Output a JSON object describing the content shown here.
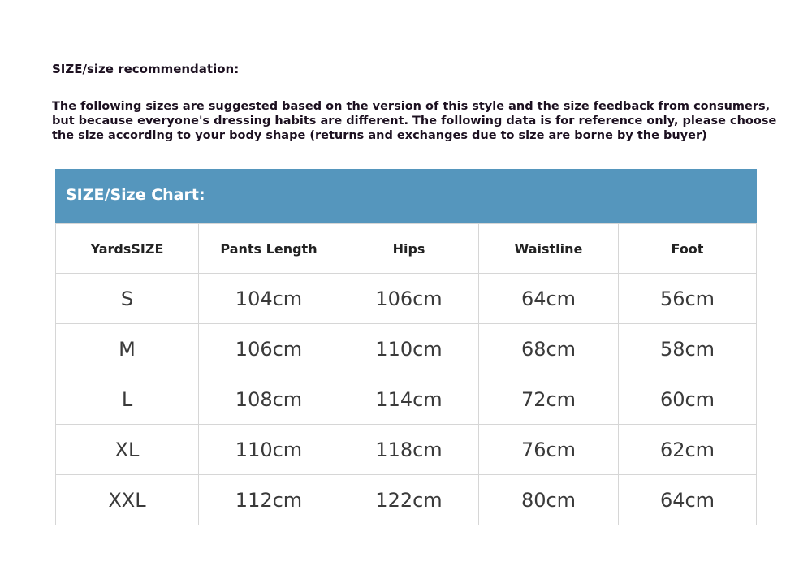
{
  "title": "SIZE/size recommendation:",
  "description": "The following sizes are suggested based on the version of this style and the size feedback from consumers, but because everyone's dressing habits are different. The following data is for reference only, please choose the size according to your body shape (returns and exchanges due to size are borne by the buyer)",
  "banner": {
    "label": "SIZE/Size Chart:",
    "color": "#5596bd"
  },
  "table": {
    "headers": [
      "YardsSIZE",
      "Pants Length",
      "Hips",
      "Waistline",
      "Foot"
    ],
    "rows": [
      [
        "S",
        "104cm",
        "106cm",
        "64cm",
        "56cm"
      ],
      [
        "M",
        "106cm",
        "110cm",
        "68cm",
        "58cm"
      ],
      [
        "L",
        "108cm",
        "114cm",
        "72cm",
        "60cm"
      ],
      [
        "XL",
        "110cm",
        "118cm",
        "76cm",
        "62cm"
      ],
      [
        "XXL",
        "112cm",
        "122cm",
        "80cm",
        "64cm"
      ]
    ]
  }
}
